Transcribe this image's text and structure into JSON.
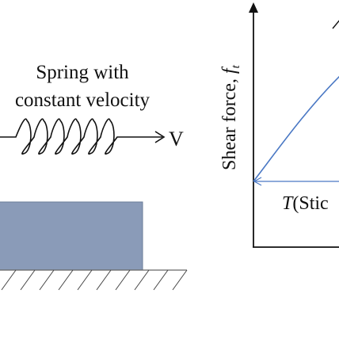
{
  "labels": {
    "spring_line1": "Spring with",
    "spring_line2": "constant velocity",
    "velocity": "V",
    "yaxis_text": "Shear force, ",
    "yaxis_symbol": "f",
    "yaxis_subscript": "t",
    "threshold_symbol": "T",
    "threshold_text": "(Stic"
  },
  "colors": {
    "block": "#8a9bb8",
    "curve": "#4a78c4",
    "ink": "#111111"
  }
}
